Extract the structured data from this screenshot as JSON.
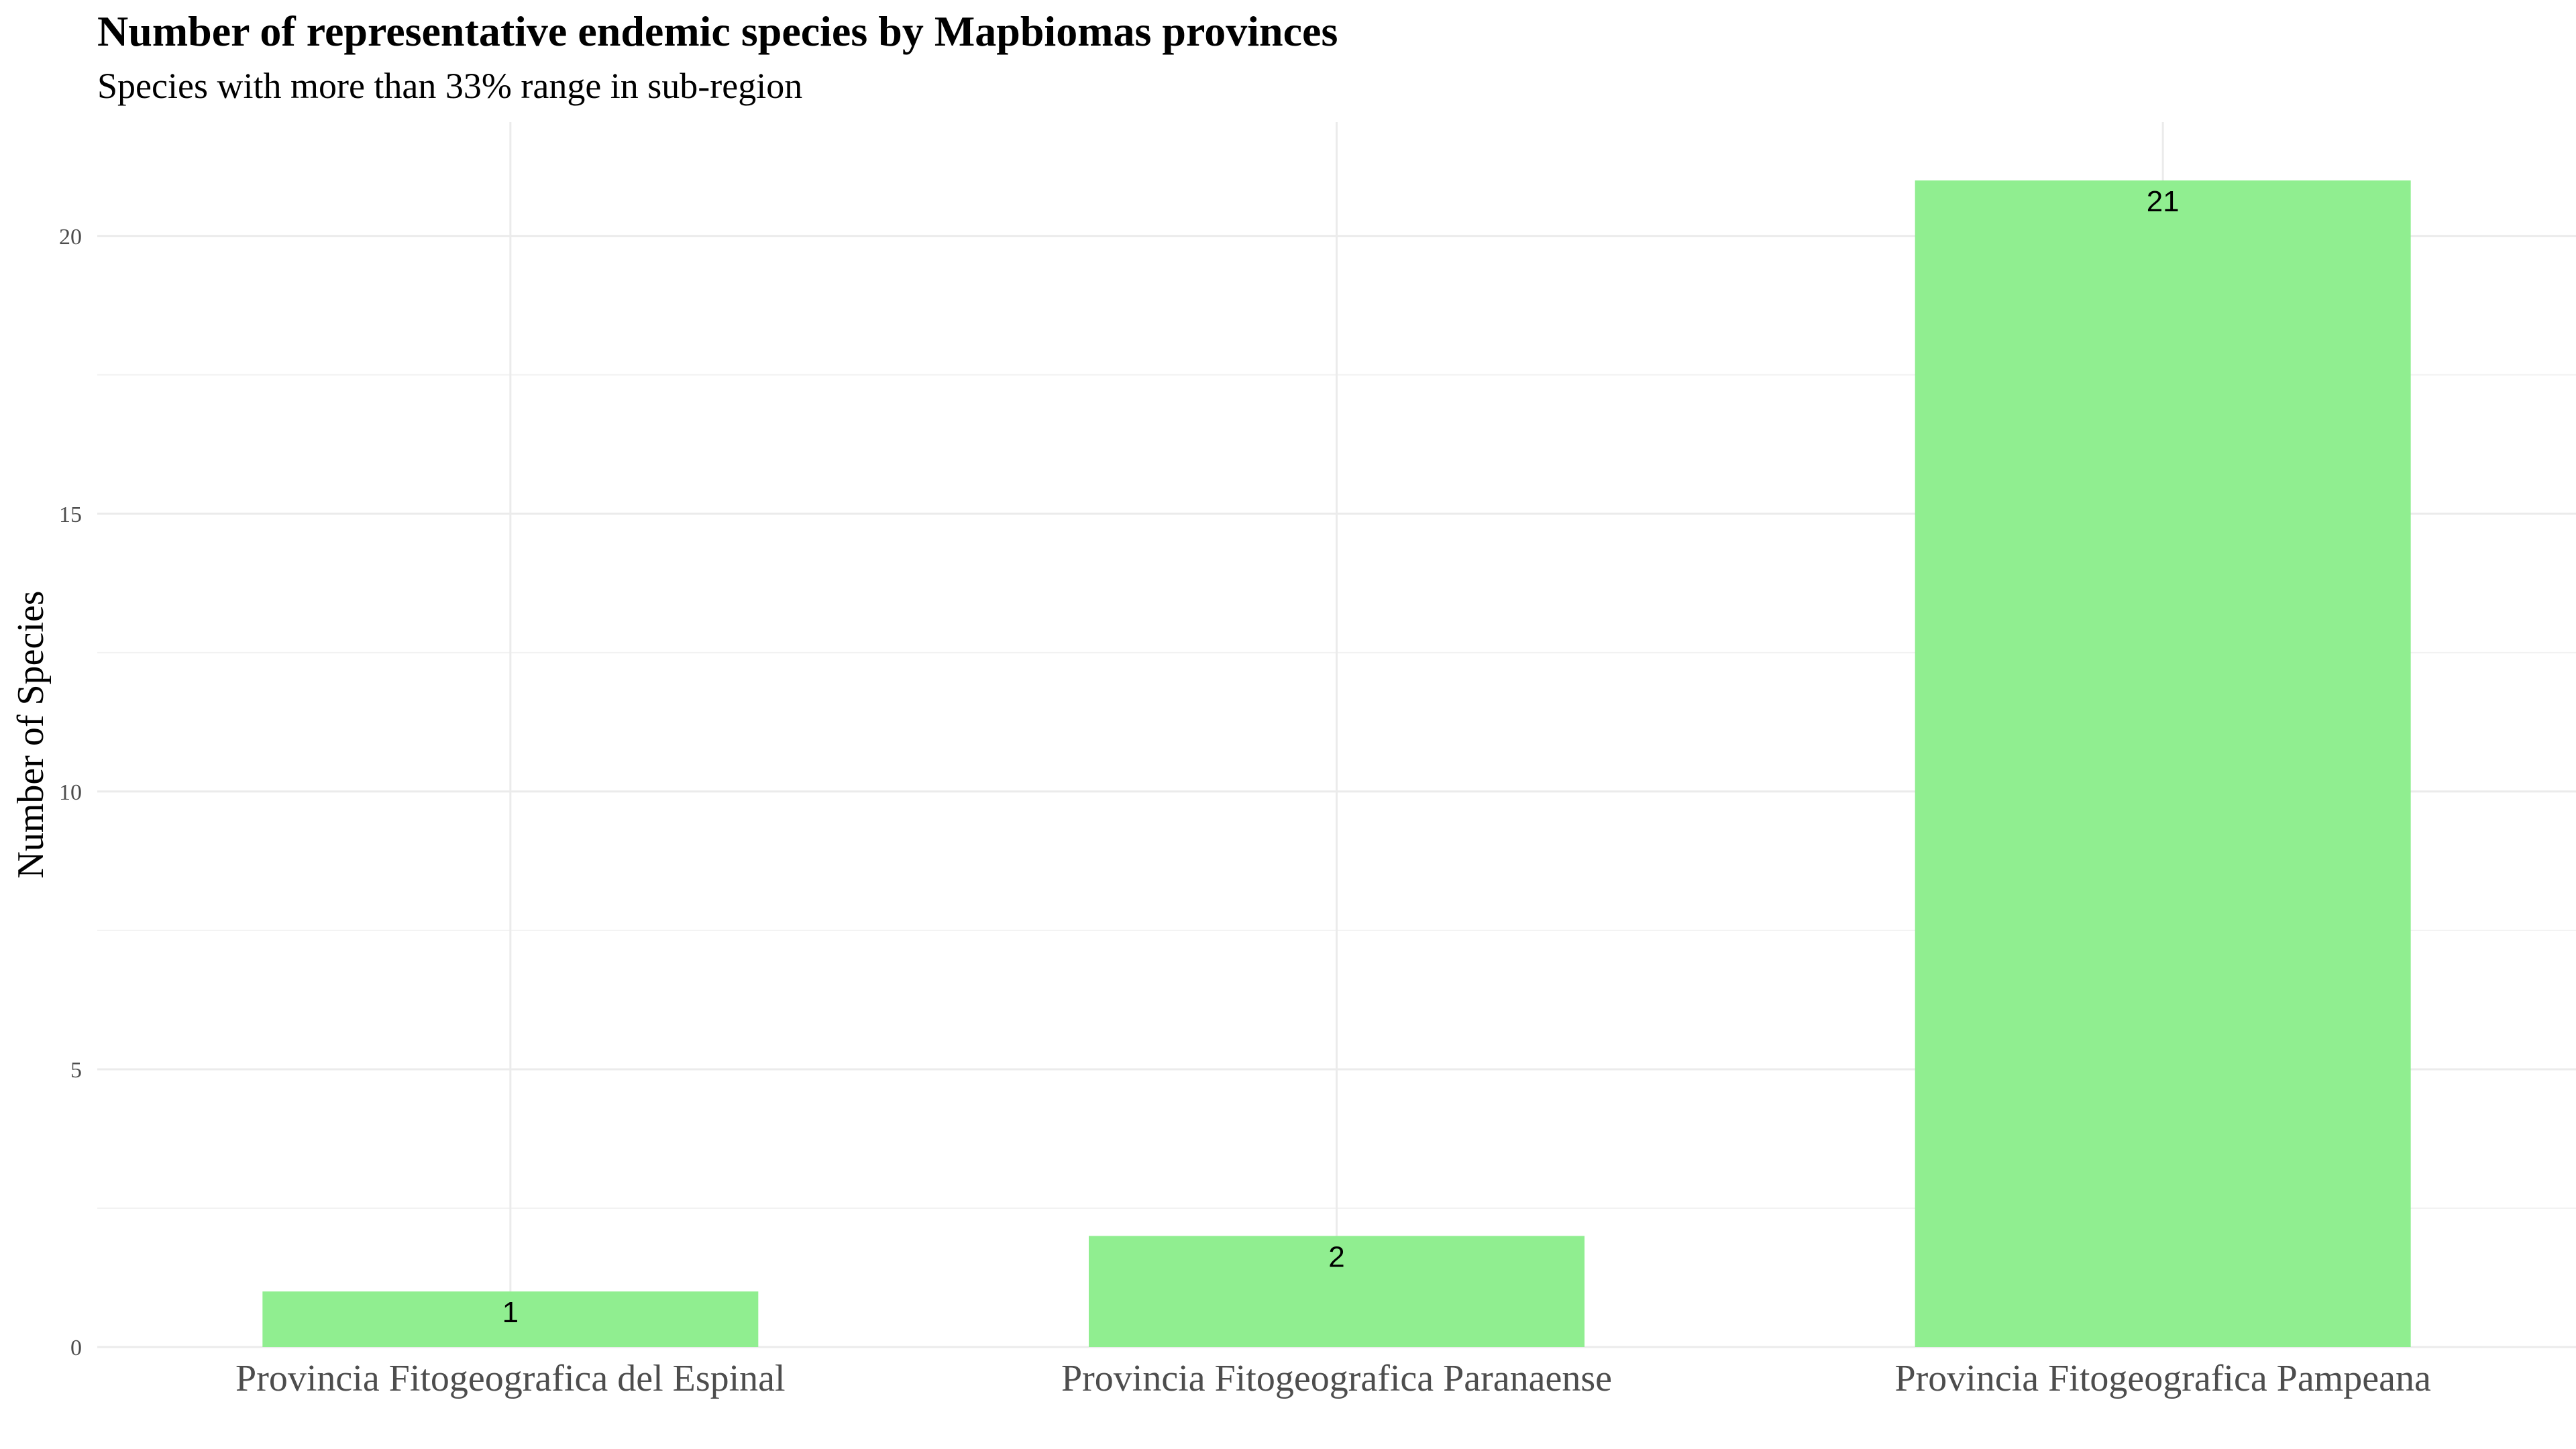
{
  "chart_data": {
    "type": "bar",
    "title": "Number of representative endemic species by Mapbiomas provinces",
    "subtitle": "Species with more than 33% range in sub-region",
    "xlabel": "",
    "ylabel": "Number of Species",
    "categories": [
      "Provincia Fitogeografica del Espinal",
      "Provincia Fitogeografica Paranaense",
      "Provincia Fitogeografica Pampeana"
    ],
    "values": [
      1,
      2,
      21
    ],
    "data_labels": [
      "1",
      "2",
      "21"
    ],
    "ylim": [
      0,
      22.05
    ],
    "y_ticks": [
      0,
      5,
      10,
      15,
      20
    ],
    "y_tick_labels": [
      "0",
      "5",
      "10",
      "15",
      "20"
    ],
    "grid": true,
    "legend": "none",
    "bar_color": "#90EE90"
  }
}
